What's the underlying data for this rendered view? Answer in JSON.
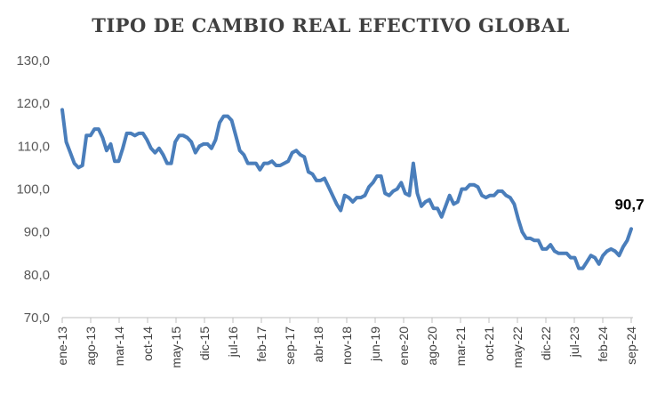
{
  "chart_data": {
    "type": "line",
    "title": "TIPO DE CAMBIO REAL EFECTIVO GLOBAL",
    "xlabel": "",
    "ylabel": "",
    "ylim": [
      70,
      130
    ],
    "yticks": [
      "70,0",
      "80,0",
      "90,0",
      "100,0",
      "110,0",
      "120,0",
      "130,0"
    ],
    "ytick_values": [
      70,
      80,
      90,
      100,
      110,
      120,
      130
    ],
    "xticks": [
      "ene-13",
      "ago-13",
      "mar-14",
      "oct-14",
      "may-15",
      "dic-15",
      "jul-16",
      "feb-17",
      "sep-17",
      "abr-18",
      "nov-18",
      "jun-19",
      "ene-20",
      "ago-20",
      "mar-21",
      "oct-21",
      "may-22",
      "dic-22",
      "jul-23",
      "feb-24",
      "sep-24"
    ],
    "grid": false,
    "legend": "none",
    "series_color": "#4a7ebb",
    "last_value_label": "90,7",
    "series": [
      {
        "values": [
          118.5,
          111.0,
          108.5,
          106.0,
          105.0,
          105.5,
          112.5,
          112.5,
          114.0,
          114.0,
          112.0,
          109.0,
          110.5,
          106.5,
          106.5,
          109.5,
          113.0,
          113.0,
          112.5,
          113.0,
          113.0,
          111.5,
          109.5,
          108.5,
          109.5,
          108.0,
          106.0,
          106.0,
          111.0,
          112.5,
          112.5,
          112.0,
          111.0,
          108.5,
          110.0,
          110.5,
          110.5,
          109.5,
          111.5,
          115.5,
          117.0,
          117.0,
          116.0,
          112.5,
          109.0,
          108.0,
          106.0,
          106.0,
          106.0,
          104.5,
          106.0,
          106.0,
          106.5,
          105.5,
          105.5,
          106.0,
          106.5,
          108.5,
          109.0,
          108.0,
          107.5,
          104.0,
          103.5,
          102.0,
          102.0,
          102.5,
          100.5,
          98.5,
          96.5,
          95.0,
          98.5,
          98.0,
          97.0,
          98.0,
          98.0,
          98.5,
          100.5,
          101.5,
          103.0,
          103.0,
          99.0,
          98.5,
          99.5,
          100.0,
          101.5,
          99.0,
          98.5,
          106.0,
          99.0,
          96.0,
          97.0,
          97.5,
          95.5,
          95.5,
          93.5,
          96.0,
          98.5,
          96.5,
          97.0,
          100.0,
          100.0,
          101.0,
          101.0,
          100.5,
          98.5,
          98.0,
          98.5,
          98.5,
          99.5,
          99.5,
          98.5,
          98.0,
          96.5,
          93.0,
          90.0,
          88.5,
          88.5,
          88.0,
          88.0,
          86.0,
          86.0,
          87.0,
          85.5,
          85.0,
          85.0,
          85.0,
          84.0,
          84.0,
          81.5,
          81.5,
          83.0,
          84.5,
          84.0,
          82.5,
          84.5,
          85.5,
          86.0,
          85.5,
          84.5,
          86.5,
          88.0,
          90.7
        ]
      }
    ]
  }
}
